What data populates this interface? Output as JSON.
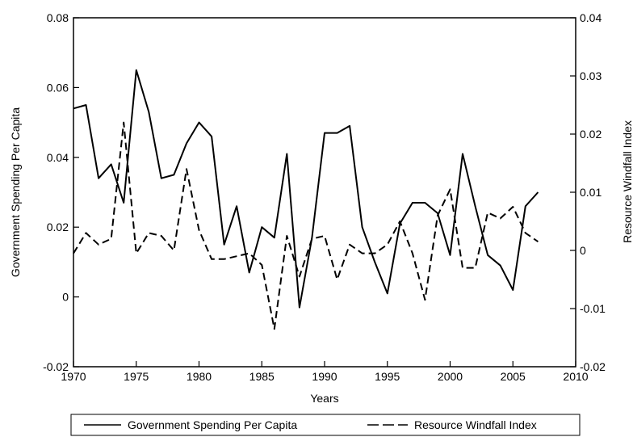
{
  "chart_data": {
    "type": "line",
    "xlabel": "Years",
    "ylabel_left": "Government Spending Per Capita",
    "ylabel_right": "Resource Windfall Index",
    "xlim": [
      1970,
      2010
    ],
    "ylim_left": [
      -0.02,
      0.08
    ],
    "ylim_right": [
      -0.02,
      0.04
    ],
    "xticks": [
      1970,
      1975,
      1980,
      1985,
      1990,
      1995,
      2000,
      2005,
      2010
    ],
    "xtick_labels": [
      "1970",
      "1975",
      "1980",
      "1985",
      "1990",
      "1995",
      "2000",
      "2005",
      "2010"
    ],
    "yticks_left": [
      -0.02,
      0,
      0.02,
      0.04,
      0.06,
      0.08
    ],
    "ytick_labels_left": [
      "-0.02",
      "0",
      "0.02",
      "0.04",
      "0.06",
      "0.08"
    ],
    "yticks_right": [
      -0.02,
      -0.01,
      0,
      0.01,
      0.02,
      0.03,
      0.04
    ],
    "ytick_labels_right": [
      "-0.02",
      "-0.01",
      "0",
      "0.01",
      "0.02",
      "0.03",
      "0.04"
    ],
    "grid": false,
    "legend_position": "bottom",
    "series": [
      {
        "name": "Government Spending Per Capita",
        "axis": "left",
        "style": "solid",
        "color": "#000000",
        "x": [
          1970,
          1971,
          1972,
          1973,
          1974,
          1975,
          1976,
          1977,
          1978,
          1979,
          1980,
          1981,
          1982,
          1983,
          1984,
          1985,
          1986,
          1987,
          1988,
          1989,
          1990,
          1991,
          1992,
          1993,
          1994,
          1995,
          1996,
          1997,
          1998,
          1999,
          2000,
          2001,
          2002,
          2003,
          2004,
          2005,
          2006,
          2007
        ],
        "values": [
          0.054,
          0.055,
          0.034,
          0.038,
          0.027,
          0.065,
          0.053,
          0.034,
          0.035,
          0.044,
          0.05,
          0.046,
          0.015,
          0.026,
          0.007,
          0.02,
          0.017,
          0.041,
          -0.003,
          0.017,
          0.047,
          0.047,
          0.049,
          0.02,
          0.01,
          0.001,
          0.021,
          0.027,
          0.027,
          0.024,
          0.012,
          0.041,
          0.026,
          0.012,
          0.009,
          0.002,
          0.026,
          0.03
        ]
      },
      {
        "name": "Resource Windfall Index",
        "axis": "right",
        "style": "dashed",
        "color": "#000000",
        "x": [
          1970,
          1971,
          1972,
          1973,
          1974,
          1975,
          1976,
          1977,
          1978,
          1979,
          1980,
          1981,
          1982,
          1983,
          1984,
          1985,
          1986,
          1987,
          1988,
          1989,
          1990,
          1991,
          1992,
          1993,
          1994,
          1995,
          1996,
          1997,
          1998,
          1999,
          2000,
          2001,
          2002,
          2003,
          2004,
          2005,
          2006,
          2007
        ],
        "values": [
          -0.0005,
          0.003,
          0.001,
          0.002,
          0.022,
          -0.0005,
          0.003,
          0.0025,
          0,
          0.014,
          0.0035,
          -0.0015,
          -0.0015,
          -0.001,
          -0.0005,
          -0.0025,
          -0.0135,
          0.0025,
          -0.0045,
          0.002,
          0.0025,
          -0.005,
          0.001,
          -0.0005,
          -0.0005,
          0.001,
          0.005,
          -0.0005,
          -0.0085,
          0.006,
          0.0105,
          -0.003,
          -0.003,
          0.0065,
          0.0055,
          0.0075,
          0.003,
          0.0015
        ]
      }
    ]
  }
}
